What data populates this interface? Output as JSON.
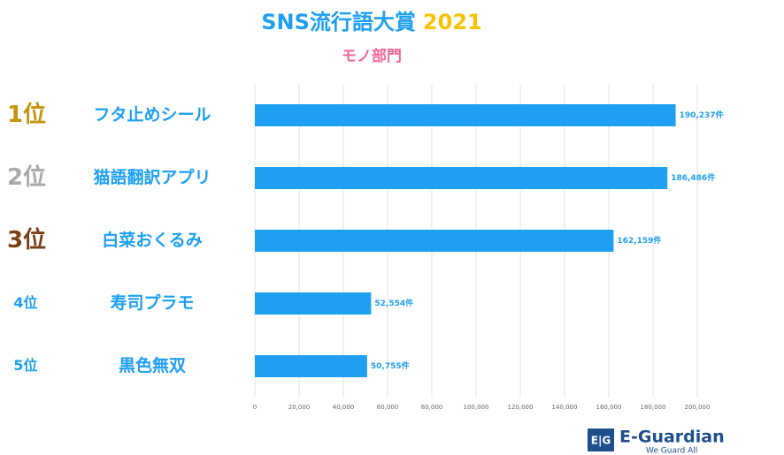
{
  "chart_data": {
    "type": "barh",
    "title": "SNS流行語大賞",
    "title_year": "2021",
    "subtitle": "モノ部門",
    "ranks": [
      "1位",
      "2位",
      "3位",
      "4位",
      "5位"
    ],
    "rank_colors": [
      "#c5930f",
      "#a9a9a9",
      "#7b3f14",
      "#1e9ff2",
      "#1e9ff2"
    ],
    "categories": [
      "フタ止めシール",
      "猫語翻訳アプリ",
      "白菜おくるみ",
      "寿司プラモ",
      "黒色無双"
    ],
    "values": [
      190237,
      186486,
      162159,
      52554,
      50755
    ],
    "value_labels": [
      "190,237件",
      "186,486件",
      "162,159件",
      "52,554件",
      "50,755件"
    ],
    "color": "#1e9ff2",
    "xlim": [
      0,
      200000
    ],
    "xticks": [
      0,
      {
        "value": 20000,
        "label": "20,000"
      },
      {
        "value": 40000,
        "label": "40,000"
      },
      {
        "value": 60000,
        "label": "60,000"
      },
      {
        "value": 80000,
        "label": "80,000"
      },
      {
        "value": 100000,
        "label": "100,000"
      },
      {
        "value": 120000,
        "label": "120,000"
      },
      {
        "value": 140000,
        "label": "140,000"
      },
      {
        "value": 160000,
        "label": "160,000"
      },
      {
        "value": 180000,
        "label": "180,000"
      },
      {
        "value": 200000,
        "label": "200,000"
      }
    ],
    "grid": true
  },
  "logo": {
    "icon": "E|G",
    "name": "E-Guardian",
    "tagline": "We Guard All"
  }
}
